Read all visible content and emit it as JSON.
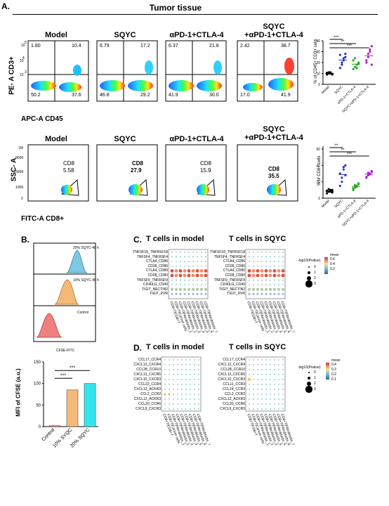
{
  "panelA": {
    "letter": "A.",
    "title": "Tumor tissue",
    "row1": {
      "titles": [
        "Model",
        "SQYC",
        "αPD-1+CTLA-4",
        "SQYC",
        "+αPD-1+CTLA-4"
      ],
      "ylabel": "PE- A CD3+",
      "xlabel": "APC-A CD45",
      "ticks": [
        "10",
        "5",
        "4",
        "10",
        "3",
        "10"
      ],
      "quadrants": [
        {
          "ul": "1.80",
          "ur": "10.4",
          "ll": "50.2",
          "lr": "37.6"
        },
        {
          "ul": "6.79",
          "ur": "17.2",
          "ll": "46.8",
          "lr": "29.2"
        },
        {
          "ul": "6.37",
          "ur": "21.8",
          "ll": "41.9",
          "lr": "30.0"
        },
        {
          "ul": "2.42",
          "ur": "38.7",
          "ll": "17.0",
          "lr": "41.9"
        }
      ]
    },
    "row2": {
      "titles": [
        "Model",
        "SQYC",
        "αPD-1+CTLA-4",
        "SQYC",
        "+αPD-1+CTLA-4"
      ],
      "ylabel": "SSC- A",
      "xlabel": "FITC-A CD8+",
      "gate_name": "CD8",
      "gates": [
        "5.58",
        "27.9",
        "15.9",
        "35.5"
      ],
      "yticks": [
        "1M",
        "800K",
        "500K",
        "100K",
        "0"
      ]
    }
  },
  "panelB": {
    "letter": "B.",
    "hist_labels": [
      "20% SQYC-48 h",
      "10% SQYC-48 h",
      "Control"
    ],
    "hist_xlabel": "CFSE-FITC",
    "hist_colors": [
      "#7ec8e3",
      "#f5b97a",
      "#f08080"
    ]
  },
  "panelC": {
    "letter": "C.",
    "title_left": "T cells in model",
    "title_right": "T cells in SQYC",
    "pairs": [
      "TNFSF18_TNFRSF18",
      "TNFSF4_TNFRSF4",
      "CTLA4_CD86",
      "CD28_CD86",
      "CTLA4_CD80",
      "CD28_CD80",
      "TNFSF9_TNFRSF9",
      "CD40LG_CD40",
      "TIGIT_NECTIN2",
      "TIGIT_PVR"
    ],
    "legend_title": "-log10(Pvalue)",
    "legend_sizes": [
      "0",
      "1",
      "2",
      "3"
    ],
    "mean_label": "mean",
    "mean_ticks": [
      "0.6",
      "0.4",
      "0.2"
    ],
    "xcols": [
      "CD8+T|CD8+T",
      "CD8+T|Cancer cells",
      "CD8+T|Fibroblasts_1",
      "CD8+T|Fibroblasts_2",
      "CD8+T|Fibroblasts_3",
      "CD8+T|Fibroblasts_4",
      "CD8+T|Fibroblasts_5",
      "CD8+T|Fibroblasts_6",
      "CD8+T|Fibroblasts_7"
    ]
  },
  "panelD": {
    "letter": "D.",
    "title_left": "T cells in model",
    "title_right": "T cells in SQYC",
    "pairs": [
      "CCL17_CCR4",
      "CXCL12_CXCR4",
      "CCL28_CCR10",
      "CXCL13_CXCR5",
      "CXCL10_CXCR3",
      "CCL22_CCR4",
      "CXCL12_ACKR3",
      "CCL2_CCR2",
      "CXCL12_ACKR3",
      "CCL20_CCR6",
      "CXCL9_CXCR3"
    ],
    "pairs_right": [
      "CCL17_CCR4",
      "CXCL12_CXCR4",
      "CCL28_CCR10",
      "CXCL13_CXCR5",
      "CXCL10_CXCR3",
      "CCL11_CCR3",
      "CCL24_CCR3",
      "CCL2_CCR2",
      "CXCL12_ACKR3",
      "CCL20_CCR6",
      "CXCL9_CXCR3"
    ],
    "legend_title": "-log10(Pvalue)",
    "legend_sizes": [
      "0",
      "1",
      "2",
      "3"
    ],
    "mean_label": "mean",
    "mean_ticks": [
      "0.4",
      "0.3",
      "0.2",
      "0.1"
    ],
    "xcols": [
      "CD8+T|CD8+T",
      "CD8+T|Cancer cells",
      "CD8+T|Fibroblasts_1",
      "CD8+T|Fibroblasts_2",
      "CD8+T|Fibroblasts_3",
      "CD8+T|Fibroblasts_4",
      "CD8+T|Fibroblasts_5",
      "CD8+T|Fibroblasts_6",
      "CD8+T|Fibroblasts_7"
    ]
  },
  "chart_data": [
    {
      "type": "scatter",
      "name_ref": "panelA-row1-summary",
      "ylabel": "% of CD45+ CD3+ cells",
      "categories": [
        "Model",
        "SQYC",
        "αPD-1+CTLA-4",
        "SQYC+αPD-1+CTLA-4"
      ],
      "yticks": [
        0,
        10,
        20,
        30,
        40
      ],
      "ylim": [
        0,
        40
      ],
      "colors": [
        "#000000",
        "#2233cc",
        "#22aa22",
        "#aa22cc"
      ],
      "points": [
        [
          9,
          10,
          11,
          9.5,
          10.5,
          11,
          10,
          9
        ],
        [
          15,
          18,
          22,
          25,
          27,
          20,
          24,
          28
        ],
        [
          14,
          16,
          18,
          20,
          22,
          24,
          15,
          19
        ],
        [
          20,
          25,
          30,
          35,
          22,
          28,
          32,
          18
        ]
      ],
      "significance": [
        "***",
        "**",
        "***"
      ]
    },
    {
      "type": "scatter",
      "name_ref": "panelA-row2-summary",
      "ylabel": "% of CD8+ cells",
      "categories": [
        "Model",
        "SQYC",
        "αPD-1+CTLA-4",
        "SQYC+αPD-1+CTLA-4"
      ],
      "yticks": [
        0,
        20,
        40,
        60
      ],
      "ylim": [
        0,
        60
      ],
      "colors": [
        "#000000",
        "#2233cc",
        "#22aa22",
        "#aa22cc"
      ],
      "points": [
        [
          6,
          8,
          10,
          7,
          9,
          11,
          8,
          10
        ],
        [
          15,
          25,
          35,
          40,
          30,
          20,
          38,
          28
        ],
        [
          10,
          13,
          15,
          18,
          12,
          16,
          14,
          17
        ],
        [
          25,
          28,
          30,
          33,
          26,
          31,
          29,
          32
        ]
      ],
      "significance": [
        "**",
        "**",
        "***"
      ]
    },
    {
      "type": "bar",
      "name_ref": "panelB-mfi",
      "ylabel": "MFI of CFSE (a.u.)",
      "categories": [
        "Control",
        "10% SYQC",
        "20% SQYC"
      ],
      "values": [
        2,
        85,
        100
      ],
      "yticks": [
        0,
        50,
        100,
        150
      ],
      "ylim": [
        0,
        150
      ],
      "colors": [
        "#f08080",
        "#f5b97a",
        "#33e6ee"
      ],
      "significance": [
        "***",
        "***"
      ]
    }
  ]
}
